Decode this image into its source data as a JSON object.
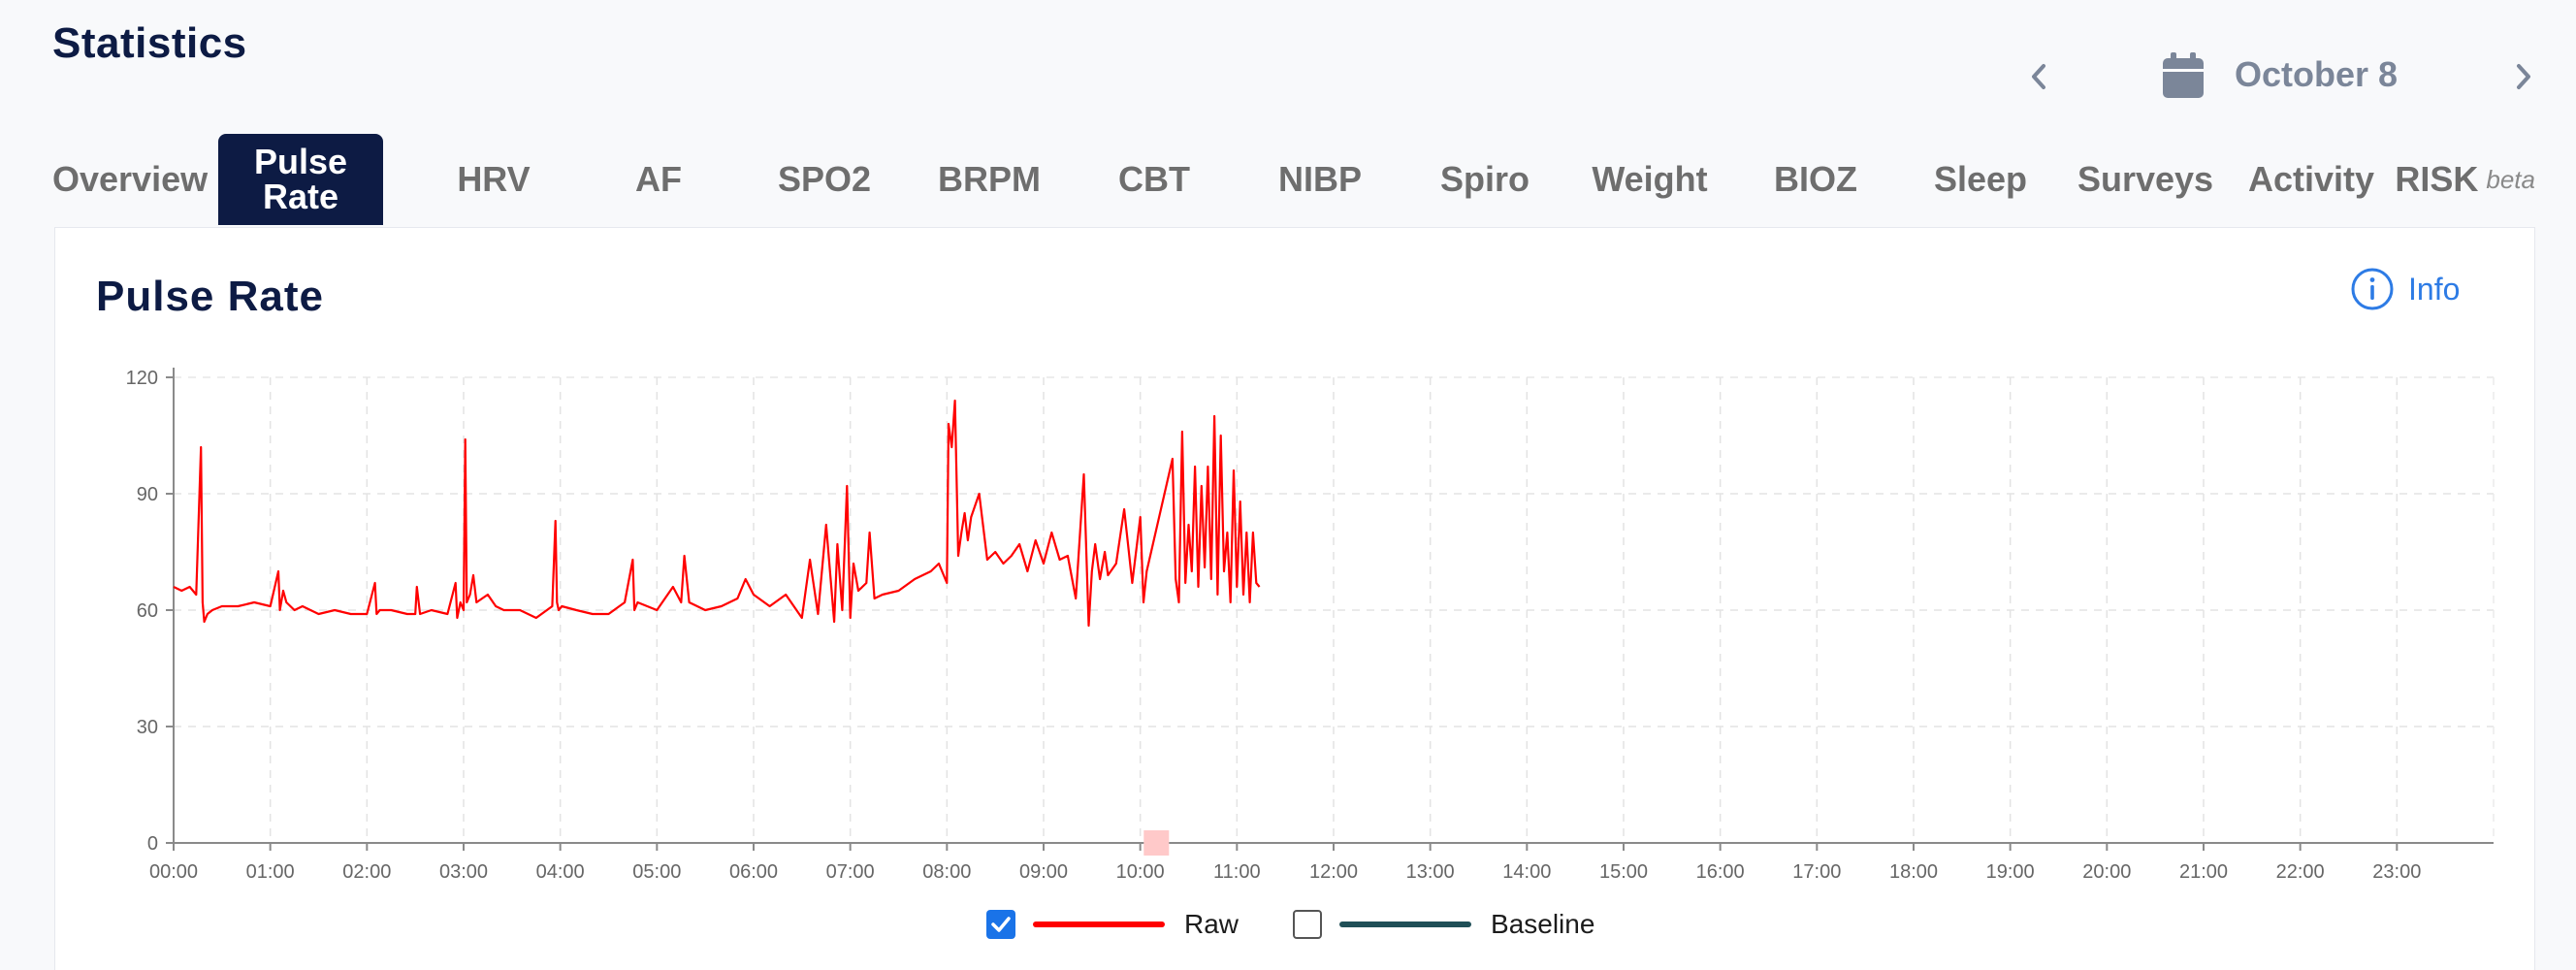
{
  "page": {
    "title": "Statistics"
  },
  "date_nav": {
    "date": "October 8"
  },
  "tabs": [
    {
      "label": "Overview"
    },
    {
      "label": "Pulse Rate",
      "active": true
    },
    {
      "label": "HRV"
    },
    {
      "label": "AF"
    },
    {
      "label": "SPO2"
    },
    {
      "label": "BRPM"
    },
    {
      "label": "CBT"
    },
    {
      "label": "NIBP"
    },
    {
      "label": "Spiro"
    },
    {
      "label": "Weight"
    },
    {
      "label": "BIOZ"
    },
    {
      "label": "Sleep"
    },
    {
      "label": "Surveys"
    },
    {
      "label": "Activity"
    },
    {
      "label": "RISK",
      "badge": "beta"
    }
  ],
  "card": {
    "title": "Pulse Rate",
    "info_label": "Info"
  },
  "icons": {
    "prev": "chevron-left-icon",
    "next": "chevron-right-icon",
    "calendar": "calendar-icon",
    "info": "info-circle-icon"
  },
  "colors": {
    "accent": "#0d1b44",
    "raw_series": "#ff0000",
    "baseline_series": "#1f4f57",
    "link": "#2d7be5",
    "highlight": "#ffc9c9"
  },
  "chart_data": {
    "type": "line",
    "xlabel": "",
    "ylabel": "",
    "ylim": [
      0,
      120
    ],
    "xlim": [
      "00:00",
      "24:00"
    ],
    "y_ticks": [
      0,
      30,
      60,
      90,
      120
    ],
    "x_ticks": [
      "00:00",
      "01:00",
      "02:00",
      "03:00",
      "04:00",
      "05:00",
      "06:00",
      "07:00",
      "08:00",
      "09:00",
      "10:00",
      "11:00",
      "12:00",
      "13:00",
      "14:00",
      "15:00",
      "16:00",
      "17:00",
      "18:00",
      "19:00",
      "20:00",
      "21:00",
      "22:00",
      "23:00"
    ],
    "grid": true,
    "legend": {
      "position": "bottom-center",
      "items": [
        {
          "label": "Raw",
          "checked": true
        },
        {
          "label": "Baseline",
          "checked": false
        }
      ]
    },
    "highlight_marker": {
      "x": "10:10",
      "y": 0
    },
    "series": [
      {
        "name": "Raw",
        "x": [
          "00:00",
          "00:05",
          "00:10",
          "00:14",
          "00:17",
          "00:18",
          "00:19",
          "00:21",
          "00:24",
          "00:30",
          "00:40",
          "00:50",
          "01:00",
          "01:05",
          "01:06",
          "01:08",
          "01:10",
          "01:15",
          "01:20",
          "01:30",
          "01:40",
          "01:50",
          "02:00",
          "02:05",
          "02:06",
          "02:08",
          "02:15",
          "02:25",
          "02:30",
          "02:31",
          "02:33",
          "02:40",
          "02:50",
          "02:55",
          "02:56",
          "02:58",
          "03:00",
          "03:01",
          "03:02",
          "03:04",
          "03:06",
          "03:08",
          "03:15",
          "03:20",
          "03:25",
          "03:35",
          "03:45",
          "03:55",
          "03:57",
          "03:58",
          "03:59",
          "04:01",
          "04:10",
          "04:20",
          "04:30",
          "04:40",
          "04:45",
          "04:46",
          "04:48",
          "05:00",
          "05:10",
          "05:15",
          "05:17",
          "05:20",
          "05:30",
          "05:40",
          "05:50",
          "05:55",
          "06:00",
          "06:10",
          "06:20",
          "06:30",
          "06:35",
          "06:40",
          "06:45",
          "06:50",
          "06:52",
          "06:55",
          "06:58",
          "07:00",
          "07:02",
          "07:05",
          "07:10",
          "07:12",
          "07:15",
          "07:20",
          "07:30",
          "07:40",
          "07:50",
          "07:55",
          "08:00",
          "08:01",
          "08:03",
          "08:05",
          "08:07",
          "08:09",
          "08:11",
          "08:13",
          "08:15",
          "08:20",
          "08:25",
          "08:30",
          "08:35",
          "08:40",
          "08:45",
          "08:50",
          "08:55",
          "09:00",
          "09:05",
          "09:10",
          "09:15",
          "09:20",
          "09:25",
          "09:28",
          "09:30",
          "09:32",
          "09:35",
          "09:38",
          "09:40",
          "09:45",
          "09:50",
          "09:55",
          "10:00",
          "10:02",
          "10:04",
          "10:20",
          "10:22",
          "10:24",
          "10:26",
          "10:28",
          "10:30",
          "10:32",
          "10:34",
          "10:36",
          "10:38",
          "10:40",
          "10:42",
          "10:44",
          "10:46",
          "10:48",
          "10:50",
          "10:52",
          "10:54",
          "10:56",
          "10:58",
          "11:00",
          "11:02",
          "11:04",
          "11:06",
          "11:08",
          "11:10",
          "11:12",
          "11:14"
        ],
        "y": [
          66,
          65,
          66,
          64,
          102,
          62,
          57,
          59,
          60,
          61,
          61,
          62,
          61,
          70,
          60,
          65,
          62,
          60,
          61,
          59,
          60,
          59,
          59,
          67,
          59,
          60,
          60,
          59,
          59,
          66,
          59,
          60,
          59,
          67,
          58,
          62,
          60,
          104,
          62,
          64,
          69,
          62,
          64,
          61,
          60,
          60,
          58,
          61,
          83,
          62,
          60,
          61,
          60,
          59,
          59,
          62,
          73,
          60,
          62,
          60,
          66,
          62,
          74,
          62,
          60,
          61,
          63,
          68,
          64,
          61,
          64,
          58,
          73,
          59,
          82,
          57,
          77,
          60,
          92,
          58,
          72,
          65,
          67,
          80,
          63,
          64,
          65,
          68,
          70,
          72,
          67,
          108,
          102,
          114,
          74,
          80,
          85,
          78,
          84,
          90,
          73,
          75,
          72,
          74,
          77,
          70,
          78,
          72,
          80,
          73,
          74,
          63,
          95,
          56,
          70,
          77,
          68,
          75,
          69,
          72,
          86,
          67,
          84,
          62,
          70,
          99,
          68,
          62,
          106,
          67,
          82,
          70,
          97,
          66,
          92,
          71,
          97,
          68,
          110,
          64,
          105,
          70,
          80,
          62,
          96,
          66,
          88,
          64,
          80,
          62,
          80,
          67,
          66
        ]
      }
    ]
  }
}
